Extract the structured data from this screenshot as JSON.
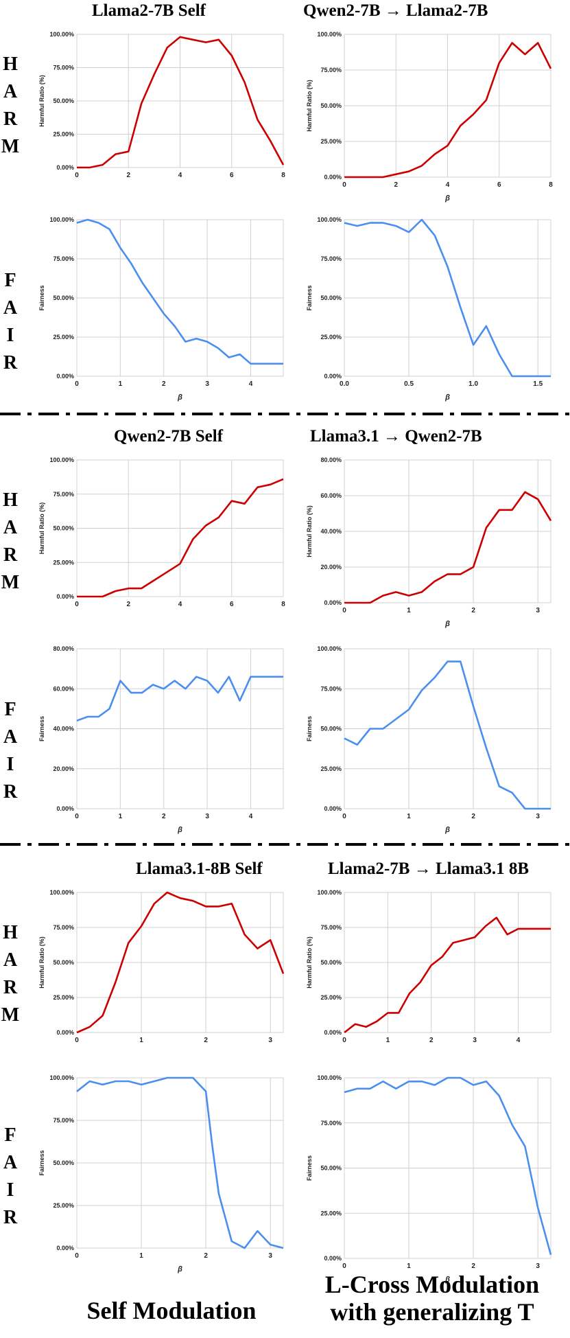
{
  "titles": {
    "r1_left": "Llama2-7B Self",
    "r1_right": "Qwen2-7B → Llama2-7B",
    "r2_left": "Qwen2-7B Self",
    "r2_right": "Llama3.1 → Qwen2-7B",
    "r3_left": "Llama3.1-8B Self",
    "r3_right": "Llama2-7B → Llama3.1 8B"
  },
  "row_labels": {
    "harm": [
      "H",
      "A",
      "R",
      "M"
    ],
    "fair": [
      "F",
      "A",
      "I",
      "R"
    ]
  },
  "footer": {
    "left": "Self Modulation",
    "right_line1": "L-Cross Modulation",
    "right_line2": "with generalizing T"
  },
  "colors": {
    "harm": "#cc0000",
    "fair": "#4a8ef0",
    "grid": "#d0d0d0"
  },
  "chart_data": [
    {
      "id": "c1",
      "type": "line",
      "ylabel": "Harmful Ratio (%)",
      "xlabel": "",
      "xlim": [
        0,
        8
      ],
      "xticks": [
        0,
        2,
        4,
        6,
        8
      ],
      "ylim": [
        0,
        100
      ],
      "yticks": [
        0,
        25,
        50,
        75,
        100
      ],
      "ytick_labels": [
        "0.00%",
        "25.00%",
        "50.00%",
        "75.00%",
        "100.00%"
      ],
      "color": "#cc0000",
      "x": [
        0,
        0.5,
        1,
        1.5,
        2,
        2.5,
        3,
        3.5,
        4,
        4.5,
        5,
        5.5,
        6,
        6.5,
        7,
        7.5,
        8
      ],
      "y": [
        0,
        0,
        2,
        10,
        12,
        48,
        70,
        90,
        98,
        96,
        94,
        96,
        84,
        64,
        36,
        20,
        2
      ]
    },
    {
      "id": "c2",
      "type": "line",
      "ylabel": "Harmful Ratio (%)",
      "xlabel": "β",
      "xlim": [
        0,
        8
      ],
      "xticks": [
        0,
        2,
        4,
        6,
        8
      ],
      "ylim": [
        0,
        100
      ],
      "yticks": [
        0,
        25,
        50,
        75,
        100
      ],
      "ytick_labels": [
        "0.00%",
        "25.00%",
        "50.00%",
        "75.00%",
        "100.00%"
      ],
      "color": "#cc0000",
      "x": [
        0,
        0.5,
        1,
        1.5,
        2,
        2.5,
        3,
        3.5,
        4,
        4.5,
        5,
        5.5,
        6,
        6.5,
        7,
        7.5,
        8
      ],
      "y": [
        0,
        0,
        0,
        0,
        2,
        4,
        8,
        16,
        22,
        36,
        44,
        54,
        80,
        94,
        86,
        94,
        76
      ]
    },
    {
      "id": "c3",
      "type": "line",
      "ylabel": "Fairness",
      "xlabel": "β",
      "xlim": [
        0,
        4.75
      ],
      "xticks": [
        0,
        1,
        2,
        3,
        4
      ],
      "ylim": [
        0,
        100
      ],
      "yticks": [
        0,
        25,
        50,
        75,
        100
      ],
      "ytick_labels": [
        "0.00%",
        "25.00%",
        "50.00%",
        "75.00%",
        "100.00%"
      ],
      "color": "#4a8ef0",
      "x": [
        0,
        0.25,
        0.5,
        0.75,
        1,
        1.25,
        1.5,
        1.75,
        2,
        2.25,
        2.5,
        2.75,
        3,
        3.25,
        3.5,
        3.75,
        4,
        4.25,
        4.5,
        4.75
      ],
      "y": [
        98,
        100,
        98,
        94,
        82,
        72,
        60,
        50,
        40,
        32,
        22,
        24,
        22,
        18,
        12,
        14,
        8,
        8,
        8,
        8
      ]
    },
    {
      "id": "c4",
      "type": "line",
      "ylabel": "Fairness",
      "xlabel": "β",
      "xlim": [
        0,
        1.6
      ],
      "xticks": [
        0,
        0.5,
        1,
        1.5
      ],
      "xtick_labels": [
        "0.0",
        "0.5",
        "1.0",
        "1.5"
      ],
      "ylim": [
        0,
        100
      ],
      "yticks": [
        0,
        25,
        50,
        75,
        100
      ],
      "ytick_labels": [
        "0.00%",
        "25.00%",
        "50.00%",
        "75.00%",
        "100.00%"
      ],
      "color": "#4a8ef0",
      "x": [
        0,
        0.1,
        0.2,
        0.3,
        0.4,
        0.5,
        0.6,
        0.7,
        0.8,
        0.9,
        1.0,
        1.1,
        1.2,
        1.3,
        1.4,
        1.5,
        1.6
      ],
      "y": [
        98,
        96,
        98,
        98,
        96,
        92,
        100,
        90,
        70,
        44,
        20,
        32,
        14,
        0,
        0,
        0,
        0
      ]
    },
    {
      "id": "c5",
      "type": "line",
      "ylabel": "Harmful Ratio (%)",
      "xlabel": "",
      "xlim": [
        0,
        8
      ],
      "xticks": [
        0,
        2,
        4,
        6,
        8
      ],
      "ylim": [
        0,
        100
      ],
      "yticks": [
        0,
        25,
        50,
        75,
        100
      ],
      "ytick_labels": [
        "0.00%",
        "25.00%",
        "50.00%",
        "75.00%",
        "100.00%"
      ],
      "color": "#cc0000",
      "x": [
        0,
        0.5,
        1,
        1.5,
        2,
        2.5,
        3,
        3.5,
        4,
        4.5,
        5,
        5.5,
        6,
        6.5,
        7,
        7.5,
        8
      ],
      "y": [
        0,
        0,
        0,
        4,
        6,
        6,
        12,
        18,
        24,
        42,
        52,
        58,
        70,
        68,
        80,
        82,
        86
      ]
    },
    {
      "id": "c6",
      "type": "line",
      "ylabel": "Harmful Ratio (%)",
      "xlabel": "β",
      "xlim": [
        0,
        3.2
      ],
      "xticks": [
        0,
        1,
        2,
        3
      ],
      "ylim": [
        0,
        80
      ],
      "yticks": [
        0,
        20,
        40,
        60,
        80
      ],
      "ytick_labels": [
        "0.00%",
        "20.00%",
        "40.00%",
        "60.00%",
        "80.00%"
      ],
      "color": "#cc0000",
      "x": [
        0,
        0.2,
        0.4,
        0.6,
        0.8,
        1.0,
        1.2,
        1.4,
        1.6,
        1.8,
        2.0,
        2.2,
        2.4,
        2.6,
        2.8,
        3.0,
        3.2
      ],
      "y": [
        0,
        0,
        0,
        4,
        6,
        4,
        6,
        12,
        16,
        16,
        20,
        42,
        52,
        52,
        62,
        58,
        46
      ]
    },
    {
      "id": "c7",
      "type": "line",
      "ylabel": "Fairness",
      "xlabel": "β",
      "xlim": [
        0,
        4.75
      ],
      "xticks": [
        0,
        1,
        2,
        3,
        4
      ],
      "ylim": [
        0,
        80
      ],
      "yticks": [
        0,
        20,
        40,
        60,
        80
      ],
      "ytick_labels": [
        "0.00%",
        "20.00%",
        "40.00%",
        "60.00%",
        "80.00%"
      ],
      "color": "#4a8ef0",
      "x": [
        0,
        0.25,
        0.5,
        0.75,
        1,
        1.25,
        1.5,
        1.75,
        2,
        2.25,
        2.5,
        2.75,
        3,
        3.25,
        3.5,
        3.75,
        4,
        4.25,
        4.5,
        4.75
      ],
      "y": [
        44,
        46,
        46,
        50,
        64,
        58,
        58,
        62,
        60,
        64,
        60,
        66,
        64,
        58,
        66,
        54,
        66,
        66,
        66,
        66
      ]
    },
    {
      "id": "c8",
      "type": "line",
      "ylabel": "Fairness",
      "xlabel": "β",
      "xlim": [
        0,
        3.2
      ],
      "xticks": [
        0,
        1,
        2,
        3
      ],
      "ylim": [
        0,
        100
      ],
      "yticks": [
        0,
        25,
        50,
        75,
        100
      ],
      "ytick_labels": [
        "0.00%",
        "25.00%",
        "50.00%",
        "75.00%",
        "100.00%"
      ],
      "color": "#4a8ef0",
      "x": [
        0,
        0.2,
        0.4,
        0.6,
        0.8,
        1.0,
        1.2,
        1.4,
        1.6,
        1.8,
        2.0,
        2.2,
        2.4,
        2.6,
        2.8,
        3.0,
        3.2
      ],
      "y": [
        44,
        40,
        50,
        50,
        56,
        62,
        74,
        82,
        92,
        92,
        64,
        38,
        14,
        10,
        0,
        0,
        0
      ]
    },
    {
      "id": "c9",
      "type": "line",
      "ylabel": "Harmful Ratio (%)",
      "xlabel": "",
      "xlim": [
        0,
        3.2
      ],
      "xticks": [
        0,
        1,
        2,
        3
      ],
      "ylim": [
        0,
        100
      ],
      "yticks": [
        0,
        25,
        50,
        75,
        100
      ],
      "ytick_labels": [
        "0.00%",
        "25.00%",
        "50.00%",
        "75.00%",
        "100.00%"
      ],
      "color": "#cc0000",
      "x": [
        0,
        0.2,
        0.4,
        0.6,
        0.8,
        1.0,
        1.2,
        1.4,
        1.6,
        1.8,
        2.0,
        2.2,
        2.4,
        2.6,
        2.8,
        3.0,
        3.2
      ],
      "y": [
        0,
        4,
        12,
        36,
        64,
        76,
        92,
        100,
        96,
        94,
        90,
        90,
        92,
        70,
        60,
        66,
        42
      ]
    },
    {
      "id": "c10",
      "type": "line",
      "ylabel": "Harmful Ratio (%)",
      "xlabel": "",
      "xlim": [
        0,
        4.75
      ],
      "xticks": [
        0,
        1,
        2,
        3,
        4
      ],
      "ylim": [
        0,
        100
      ],
      "yticks": [
        0,
        25,
        50,
        75,
        100
      ],
      "ytick_labels": [
        "0.00%",
        "25.00%",
        "50.00%",
        "75.00%",
        "100.00%"
      ],
      "color": "#cc0000",
      "x": [
        0,
        0.25,
        0.5,
        0.75,
        1,
        1.25,
        1.5,
        1.75,
        2,
        2.25,
        2.5,
        2.75,
        3,
        3.25,
        3.5,
        3.75,
        4,
        4.25,
        4.5,
        4.75
      ],
      "y": [
        0,
        6,
        4,
        8,
        14,
        14,
        28,
        36,
        48,
        54,
        64,
        66,
        68,
        76,
        82,
        70,
        74,
        74,
        74,
        74
      ]
    },
    {
      "id": "c11",
      "type": "line",
      "ylabel": "Fairness",
      "xlabel": "β",
      "xlim": [
        0,
        3.2
      ],
      "xticks": [
        0,
        1,
        2,
        3
      ],
      "ylim": [
        0,
        100
      ],
      "yticks": [
        0,
        25,
        50,
        75,
        100
      ],
      "ytick_labels": [
        "0.00%",
        "25.00%",
        "50.00%",
        "75.00%",
        "100.00%"
      ],
      "color": "#4a8ef0",
      "x": [
        0,
        0.2,
        0.4,
        0.6,
        0.8,
        1.0,
        1.2,
        1.4,
        1.6,
        1.8,
        2.0,
        2.1,
        2.2,
        2.4,
        2.6,
        2.8,
        3.0,
        3.2
      ],
      "y": [
        92,
        98,
        96,
        98,
        98,
        96,
        98,
        100,
        100,
        100,
        92,
        60,
        32,
        4,
        0,
        10,
        2,
        0
      ]
    },
    {
      "id": "c12",
      "type": "line",
      "ylabel": "Fairness",
      "xlabel": "β",
      "xlim": [
        0,
        3.2
      ],
      "xticks": [
        0,
        1,
        2,
        3
      ],
      "ylim": [
        0,
        100
      ],
      "yticks": [
        0,
        25,
        50,
        75,
        100
      ],
      "ytick_labels": [
        "0.00%",
        "25.00%",
        "50.00%",
        "75.00%",
        "100.00%"
      ],
      "color": "#4a8ef0",
      "x": [
        0,
        0.2,
        0.4,
        0.6,
        0.8,
        1.0,
        1.2,
        1.4,
        1.6,
        1.8,
        2.0,
        2.2,
        2.4,
        2.6,
        2.8,
        3.0,
        3.2
      ],
      "y": [
        92,
        94,
        94,
        98,
        94,
        98,
        98,
        96,
        100,
        100,
        96,
        98,
        90,
        74,
        62,
        28,
        2
      ]
    }
  ]
}
